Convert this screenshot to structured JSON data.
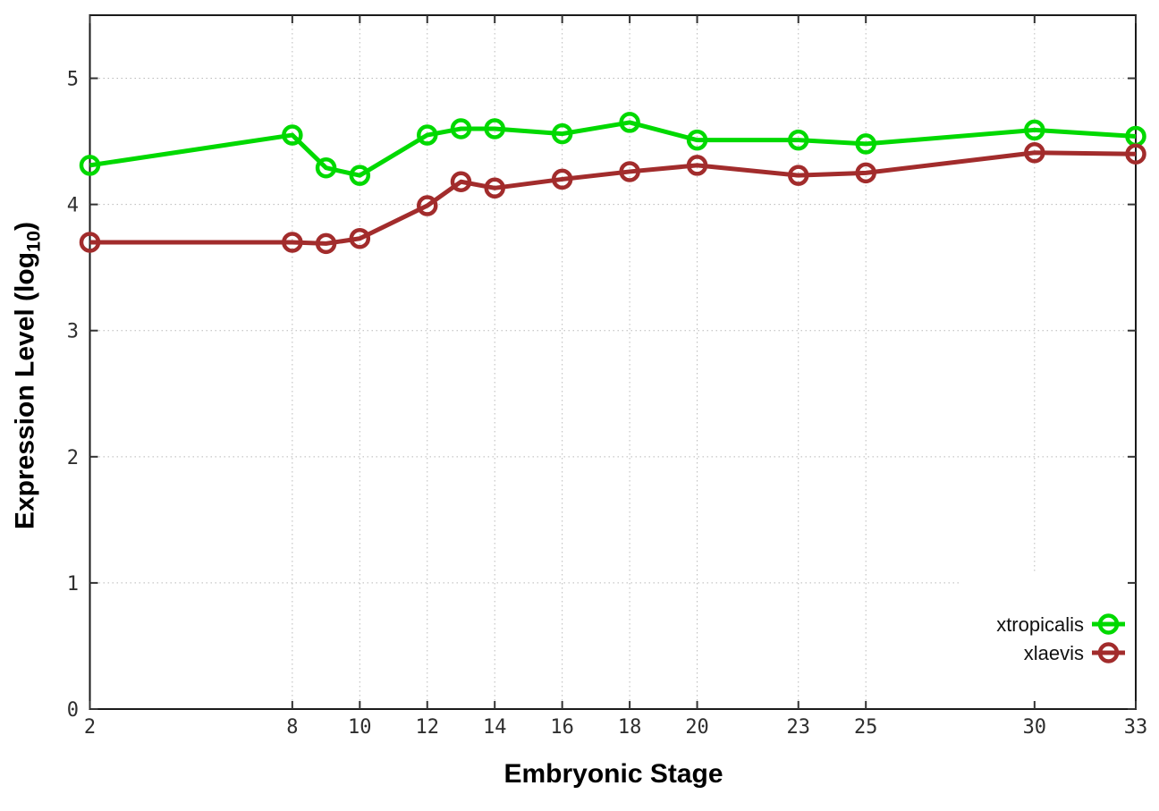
{
  "chart_data": {
    "type": "line",
    "title": "",
    "xlabel": "Embryonic Stage",
    "ylabel": "Expression Level (log10)",
    "ylabel_parts": {
      "prefix": "Expression Level (log",
      "sub": "10",
      "suffix": ")"
    },
    "xlim": [
      2,
      33
    ],
    "ylim": [
      0,
      5.5
    ],
    "x_ticks": [
      2,
      8,
      10,
      12,
      14,
      16,
      18,
      20,
      23,
      25,
      30,
      33
    ],
    "y_ticks": [
      0,
      1,
      2,
      3,
      4,
      5
    ],
    "grid": true,
    "legend_position": "inside-bottom-right",
    "x": [
      2,
      8,
      9,
      10,
      12,
      13,
      14,
      16,
      18,
      20,
      23,
      25,
      30,
      33
    ],
    "series": [
      {
        "name": "xtropicalis",
        "color": "#00d900",
        "values": [
          4.31,
          4.55,
          4.29,
          4.23,
          4.55,
          4.6,
          4.6,
          4.56,
          4.65,
          4.51,
          4.51,
          4.48,
          4.59,
          4.54
        ]
      },
      {
        "name": "xlaevis",
        "color": "#a22c2c",
        "values": [
          3.7,
          3.7,
          3.69,
          3.73,
          3.99,
          4.18,
          4.13,
          4.2,
          4.26,
          4.31,
          4.23,
          4.25,
          4.41,
          4.4
        ]
      }
    ],
    "colors": {
      "background": "#ffffff",
      "border": "#1a1a1a",
      "grid": "#b9b9b9",
      "tick": "#333333",
      "tick_label": "#2e2e2e",
      "legend_text": "#111111"
    }
  }
}
